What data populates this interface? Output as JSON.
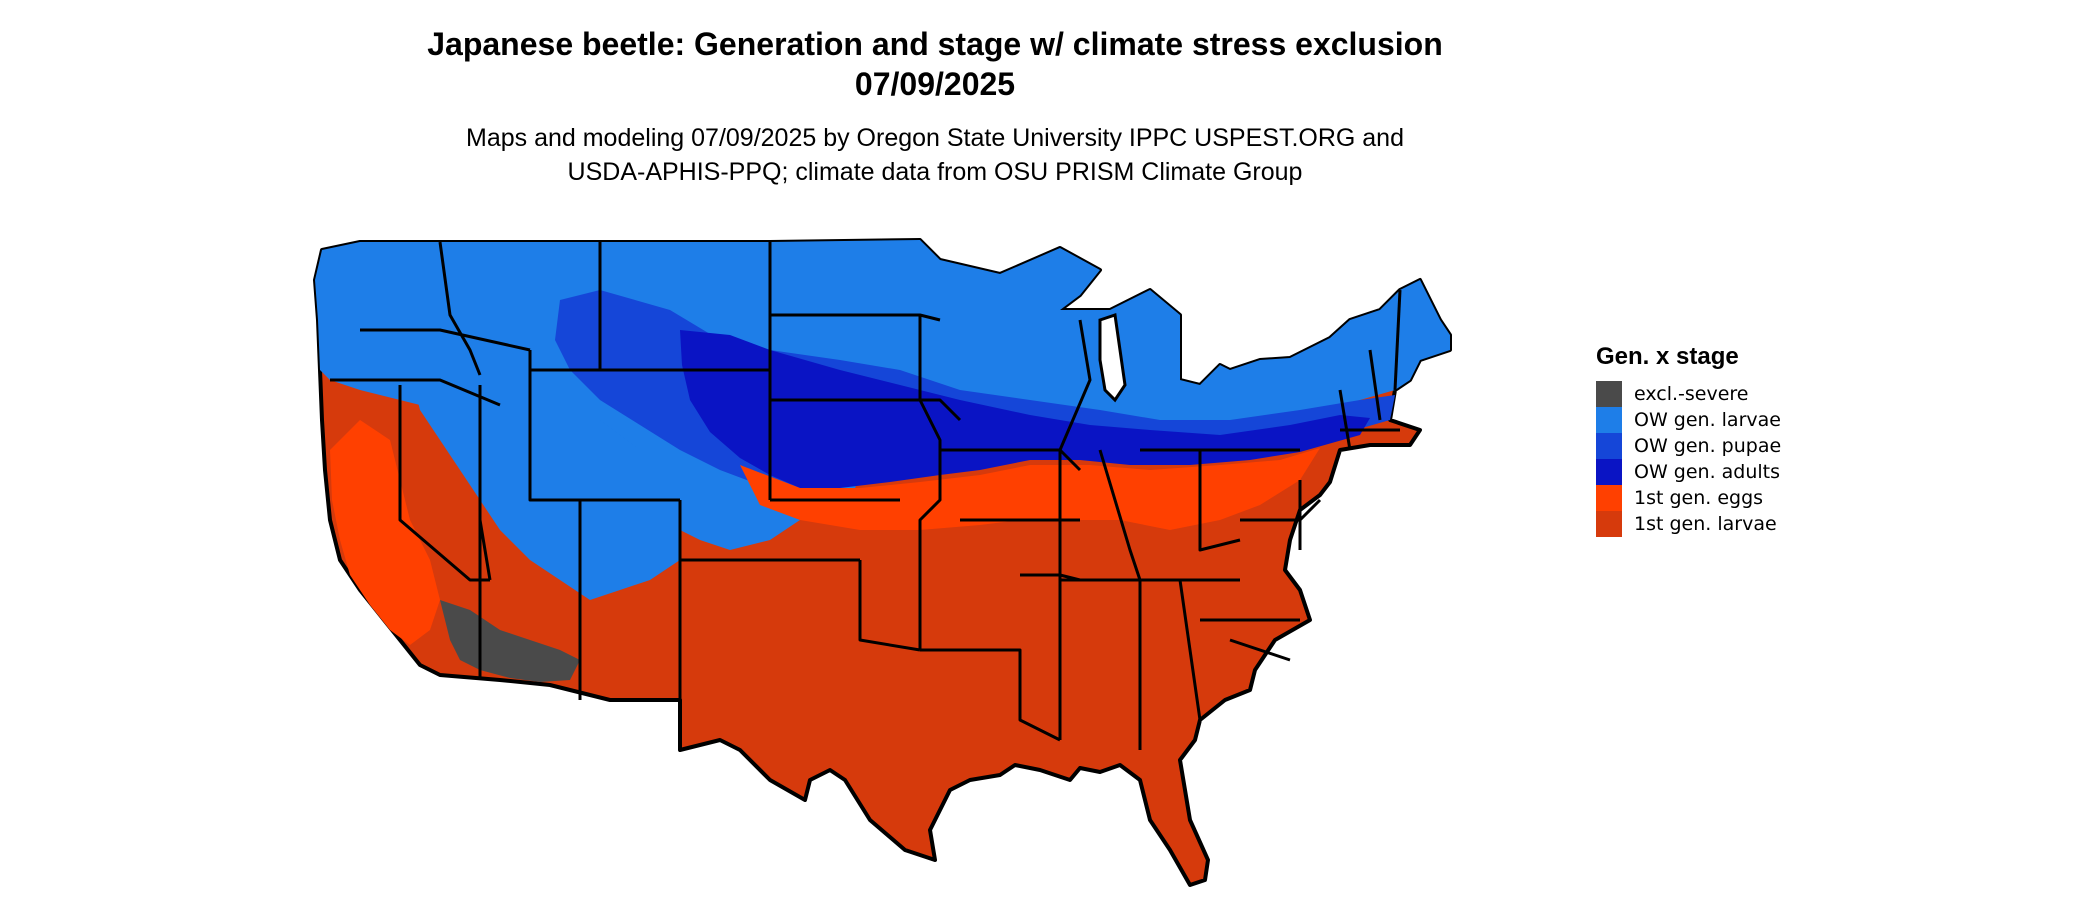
{
  "title": {
    "line1": "Japanese beetle: Generation and stage w/ climate stress exclusion",
    "line2": "07/09/2025"
  },
  "subtitle": {
    "line1": "Maps and modeling 07/09/2025 by Oregon State University IPPC USPEST.ORG and",
    "line2": "USDA-APHIS-PPQ; climate data from OSU PRISM Climate Group"
  },
  "legend": {
    "title": "Gen. x stage",
    "items": [
      {
        "label": "excl.-severe",
        "color": "#4a4a4a"
      },
      {
        "label": "OW gen. larvae",
        "color": "#1e7ee8"
      },
      {
        "label": "OW gen. pupae",
        "color": "#1546d8"
      },
      {
        "label": "OW gen. adults",
        "color": "#0a14c4"
      },
      {
        "label": "1st gen. eggs",
        "color": "#ff4000"
      },
      {
        "label": "1st gen. larvae",
        "color": "#d63a0c"
      }
    ]
  }
}
